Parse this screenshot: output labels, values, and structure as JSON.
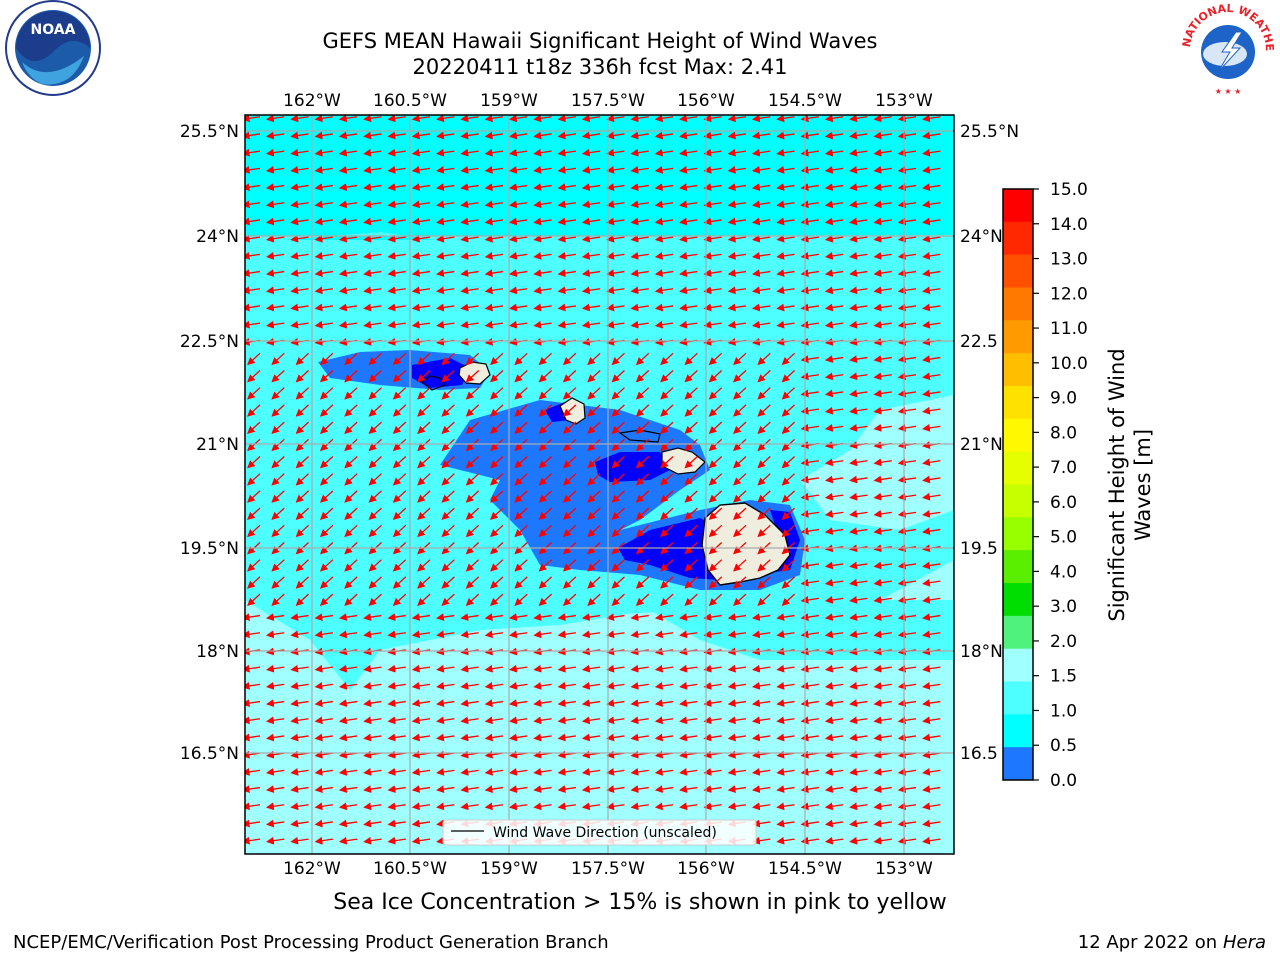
{
  "title": {
    "line1": "GEFS MEAN Hawaii Significant Height of Wind Waves",
    "line2": "20220411 t18z 336h fcst   Max: 2.41"
  },
  "map": {
    "lon_labels": [
      "162°W",
      "160.5°W",
      "159°W",
      "157.5°W",
      "156°W",
      "154.5°W",
      "153°W"
    ],
    "lat_labels": [
      "25.5°N",
      "24°N",
      "22.5°N",
      "21°N",
      "19.5°N",
      "18°N",
      "16.5°N"
    ],
    "right_lat_labels": [
      "25.5°N",
      "24°N",
      "22.5",
      "21°N",
      "19.5",
      "18°N",
      "16.5"
    ],
    "legend_label": "Wind Wave Direction (unscaled)",
    "arrow_color": "#ff0000",
    "land_color": "#efedde",
    "ocean_levels": {
      "0.0-0.5": "#0000ff",
      "0.5-1.0": "#1e78ff",
      "1.0-1.5": "#00ffff",
      "1.5-2.0": "#4dffff",
      "2.0-3.0": "#a0ffff"
    }
  },
  "colorbar": {
    "ticks": [
      "15.0",
      "14.0",
      "13.0",
      "12.0",
      "11.0",
      "10.0",
      "9.0",
      "8.0",
      "7.0",
      "6.0",
      "5.0",
      "4.0",
      "3.0",
      "2.0",
      "1.5",
      "1.0",
      "0.5",
      "0.0"
    ],
    "colors": [
      "#ff0000",
      "#ff2800",
      "#ff5000",
      "#ff7800",
      "#ff9b00",
      "#ffbe00",
      "#ffe100",
      "#fff800",
      "#e6ff00",
      "#c8ff00",
      "#96ff00",
      "#5aee00",
      "#00dd00",
      "#4ff27a",
      "#a0ffff",
      "#4dffff",
      "#00ffff",
      "#1e78ff",
      "#0000ff"
    ],
    "label_line1": "Significant Height of Wind",
    "label_line2": "Waves [m]"
  },
  "sea_ice_note": "Sea Ice Concentration > 15% is shown in pink to yellow",
  "footer": {
    "left": "NCEP/EMC/Verification Post Processing Product Generation Branch",
    "right_prefix": "12 Apr 2022 on ",
    "right_host": "Hera"
  },
  "logos": {
    "noaa_text": "NOAA",
    "nws_text": "NATIONAL WEATHER SERVICE"
  }
}
